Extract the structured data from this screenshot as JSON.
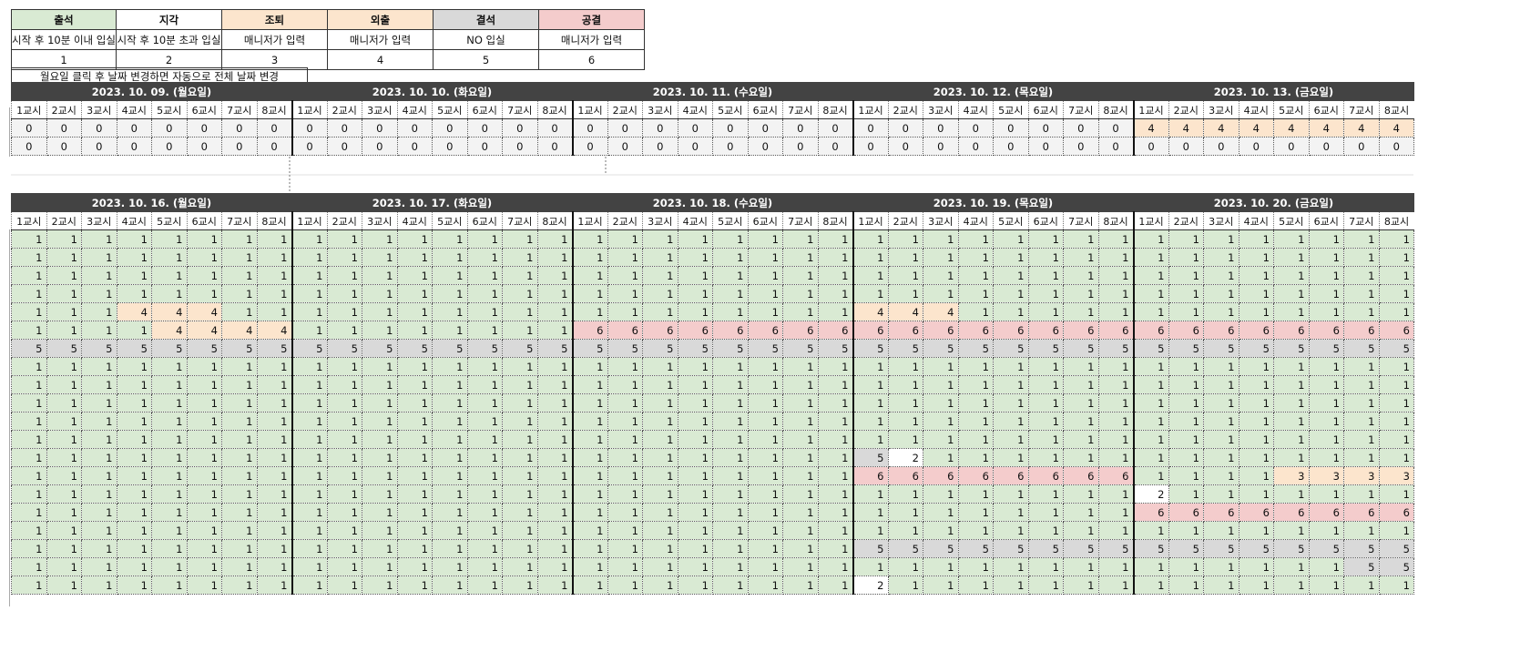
{
  "legend": {
    "codes": [
      {
        "label": "출석",
        "desc": "시작 후 10분 이내 입실",
        "value": "1",
        "color": "#d9ead3"
      },
      {
        "label": "지각",
        "desc": "시작 후 10분 초과 입실",
        "value": "2",
        "color": "#ffffff"
      },
      {
        "label": "조퇴",
        "desc": "매니저가 입력",
        "value": "3",
        "color": "#fce5cd"
      },
      {
        "label": "외출",
        "desc": "매니저가 입력",
        "value": "4",
        "color": "#fce5cd"
      },
      {
        "label": "결석",
        "desc": "NO 입실",
        "value": "5",
        "color": "#d9d9d9"
      },
      {
        "label": "공결",
        "desc": "매니저가 입력",
        "value": "6",
        "color": "#f4cccc"
      }
    ],
    "note": "월요일 클릭 후 날짜 변경하면 자동으로 전체 날짜 변경"
  },
  "periods": [
    "1교시",
    "2교시",
    "3교시",
    "4교시",
    "5교시",
    "6교시",
    "7교시",
    "8교시"
  ],
  "week1": {
    "days": [
      "2023. 10. 09. (월요일)",
      "2023. 10. 10. (화요일)",
      "2023. 10. 11. (수요일)",
      "2023. 10. 12. (목요일)",
      "2023. 10. 13. (금요일)"
    ],
    "rows": [
      "0000000000000000000000000000000044444444",
      "0000000000000000000000000000000000000000"
    ]
  },
  "week2": {
    "days": [
      "2023. 10. 16. (월요일)",
      "2023. 10. 17. (화요일)",
      "2023. 10. 18. (수요일)",
      "2023. 10. 19. (목요일)",
      "2023. 10. 20. (금요일)"
    ],
    "rows": [
      "1111111111111111111111111111111111111111",
      "1111111111111111111111111111111111111111",
      "1111111111111111111111111111111111111111",
      "1111111111111111111111111111111111111111",
      "1114441111111111111111114441111111111111",
      "1111444411111111666666666666666666666666",
      "5555555555555555555555555555555555555555",
      "1111111111111111111111111111111111111111",
      "1111111111111111111111111111111111111111",
      "1111111111111111111111111111111111111111",
      "1111111111111111111111111111111111111111",
      "1111111111111111111111111111111111111111",
      "1111111111111111111111115211111111111111",
      "1111111111111111111111116666666611113333",
      "1111111111111111111111111111111121111111",
      "1111111111111111111111111111111166666666",
      "1111111111111111111111111111111111111111",
      "1111111111111111111111115555555555555555",
      "1111111111111111111111111111111111111155",
      "1111111111111111111111112111111111111111"
    ]
  }
}
